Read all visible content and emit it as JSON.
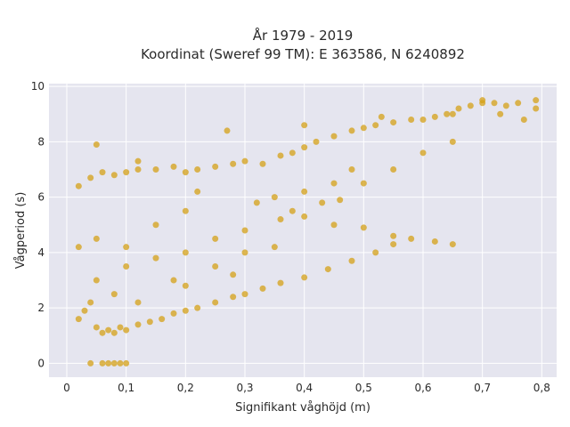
{
  "chart_data": {
    "type": "scatter",
    "title": "År 1979 - 2019",
    "subtitle": "Koordinat (Sweref 99 TM): E 363586, N 6240892",
    "xlabel": "Signifikant våghöjd (m)",
    "ylabel": "Vågperiod (s)",
    "xlim": [
      -0.03,
      0.825
    ],
    "ylim": [
      -0.5,
      10.1
    ],
    "x_ticks": [
      0,
      0.1,
      0.2,
      0.3,
      0.4,
      0.5,
      0.6,
      0.7,
      0.8
    ],
    "x_tick_labels": [
      "0",
      "0,1",
      "0,2",
      "0,3",
      "0,4",
      "0,5",
      "0,6",
      "0,7",
      "0,8"
    ],
    "y_ticks": [
      0,
      2,
      4,
      6,
      8,
      10
    ],
    "y_tick_labels": [
      "0",
      "2",
      "4",
      "6",
      "8",
      "10"
    ],
    "grid": true,
    "legend": "none",
    "marker_color": "#d4a017",
    "plot_background": "#e5e5ef",
    "series": [
      {
        "values": [
          [
            0.02,
            1.6
          ],
          [
            0.02,
            4.2
          ],
          [
            0.03,
            1.9
          ],
          [
            0.04,
            2.2
          ],
          [
            0.05,
            1.3
          ],
          [
            0.06,
            1.1
          ],
          [
            0.07,
            1.2
          ],
          [
            0.08,
            1.1
          ],
          [
            0.09,
            1.3
          ],
          [
            0.1,
            1.2
          ],
          [
            0.12,
            1.4
          ],
          [
            0.14,
            1.5
          ],
          [
            0.16,
            1.6
          ],
          [
            0.18,
            1.8
          ],
          [
            0.2,
            1.9
          ],
          [
            0.22,
            2.0
          ],
          [
            0.25,
            2.2
          ],
          [
            0.28,
            2.4
          ],
          [
            0.3,
            2.5
          ],
          [
            0.33,
            2.7
          ],
          [
            0.36,
            2.9
          ],
          [
            0.4,
            3.1
          ],
          [
            0.44,
            3.4
          ],
          [
            0.48,
            3.7
          ],
          [
            0.52,
            4.0
          ],
          [
            0.55,
            4.3
          ],
          [
            0.02,
            6.4
          ],
          [
            0.04,
            6.7
          ],
          [
            0.06,
            6.9
          ],
          [
            0.08,
            6.8
          ],
          [
            0.1,
            6.9
          ],
          [
            0.12,
            7.0
          ],
          [
            0.15,
            7.0
          ],
          [
            0.18,
            7.1
          ],
          [
            0.2,
            6.9
          ],
          [
            0.22,
            7.0
          ],
          [
            0.25,
            7.1
          ],
          [
            0.28,
            7.2
          ],
          [
            0.3,
            7.3
          ],
          [
            0.33,
            7.2
          ],
          [
            0.36,
            7.5
          ],
          [
            0.38,
            7.6
          ],
          [
            0.4,
            7.8
          ],
          [
            0.42,
            8.0
          ],
          [
            0.45,
            8.2
          ],
          [
            0.48,
            8.4
          ],
          [
            0.5,
            8.5
          ],
          [
            0.52,
            8.6
          ],
          [
            0.55,
            8.7
          ],
          [
            0.58,
            8.8
          ],
          [
            0.6,
            8.8
          ],
          [
            0.62,
            8.9
          ],
          [
            0.64,
            9.0
          ],
          [
            0.66,
            9.2
          ],
          [
            0.68,
            9.3
          ],
          [
            0.7,
            9.4
          ],
          [
            0.72,
            9.4
          ],
          [
            0.74,
            9.3
          ],
          [
            0.76,
            9.4
          ],
          [
            0.79,
            9.5
          ],
          [
            0.79,
            9.2
          ],
          [
            0.05,
            7.9
          ],
          [
            0.12,
            7.3
          ],
          [
            0.27,
            8.4
          ],
          [
            0.4,
            8.6
          ],
          [
            0.53,
            8.9
          ],
          [
            0.65,
            9.0
          ],
          [
            0.7,
            9.5
          ],
          [
            0.73,
            9.0
          ],
          [
            0.77,
            8.8
          ],
          [
            0.65,
            4.3
          ],
          [
            0.62,
            4.4
          ],
          [
            0.58,
            4.5
          ],
          [
            0.55,
            4.6
          ],
          [
            0.5,
            4.9
          ],
          [
            0.45,
            5.0
          ],
          [
            0.4,
            5.3
          ],
          [
            0.38,
            5.5
          ],
          [
            0.36,
            5.2
          ],
          [
            0.43,
            5.8
          ],
          [
            0.46,
            5.9
          ],
          [
            0.5,
            6.5
          ],
          [
            0.55,
            7.0
          ],
          [
            0.6,
            7.6
          ],
          [
            0.65,
            8.0
          ],
          [
            0.04,
            0.0
          ],
          [
            0.06,
            0.0
          ],
          [
            0.07,
            0.0
          ],
          [
            0.08,
            0.0
          ],
          [
            0.09,
            0.0
          ],
          [
            0.1,
            0.0
          ],
          [
            0.05,
            4.5
          ],
          [
            0.1,
            4.2
          ],
          [
            0.15,
            3.8
          ],
          [
            0.2,
            4.0
          ],
          [
            0.25,
            4.5
          ],
          [
            0.3,
            4.8
          ],
          [
            0.05,
            3.0
          ],
          [
            0.1,
            3.5
          ],
          [
            0.15,
            5.0
          ],
          [
            0.2,
            5.5
          ],
          [
            0.25,
            3.5
          ],
          [
            0.3,
            4.0
          ],
          [
            0.35,
            4.2
          ],
          [
            0.35,
            6.0
          ],
          [
            0.4,
            6.2
          ],
          [
            0.45,
            6.5
          ],
          [
            0.48,
            7.0
          ],
          [
            0.2,
            2.8
          ],
          [
            0.08,
            2.5
          ],
          [
            0.12,
            2.2
          ],
          [
            0.18,
            3.0
          ],
          [
            0.28,
            3.2
          ],
          [
            0.32,
            5.8
          ],
          [
            0.22,
            6.2
          ]
        ]
      }
    ]
  }
}
